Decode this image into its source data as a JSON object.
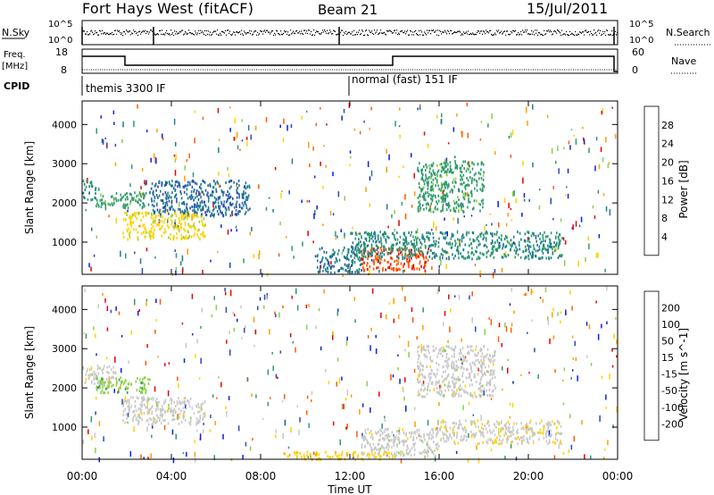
{
  "header": {
    "radar": "Fort Hays West (fitACF)",
    "beam": "Beam 21",
    "date": "15/Jul/2011"
  },
  "summary_panels": {
    "sky": {
      "left_label": "N.Sky",
      "ticks_left": [
        "10^5",
        "10^0"
      ],
      "right_label": "N.Search",
      "ticks_right": [
        "10^5",
        "10^0"
      ]
    },
    "freq": {
      "left_label_1": "Freq.",
      "left_label_2": "[MHz]",
      "ticks_left": [
        "18",
        "8"
      ],
      "right_label": "Nave",
      "ticks_right": [
        "60",
        "0"
      ]
    },
    "cpid": {
      "label": "CPID",
      "modes": [
        {
          "name": "themis 3300 IF",
          "start_ut": 0.0
        },
        {
          "name": "normal (fast) 151 IF",
          "start_ut": 12.0
        }
      ]
    }
  },
  "chart_data": [
    {
      "type": "heatmap",
      "title": "Power",
      "ylabel": "Slant Range [km]",
      "xlabel": "",
      "ylim": [
        180,
        4600
      ],
      "xlim": [
        0,
        24
      ],
      "yticks": [
        "1000",
        "2000",
        "3000",
        "4000"
      ],
      "colorbar": {
        "label": "Power [dB]",
        "ticks": [
          "4",
          "8",
          "12",
          "16",
          "20",
          "24",
          "28"
        ],
        "range": [
          0,
          30
        ],
        "colors": [
          "#0a1fe0",
          "#2a4ab8",
          "#1f7e8c",
          "#2f9a6a",
          "#8ccf48",
          "#ffd200",
          "#ff9c00",
          "#ff5a00",
          "#e60000"
        ]
      },
      "regions": [
        {
          "x": [
            0.0,
            0.6
          ],
          "y": [
            2100,
            2600
          ],
          "level": 10
        },
        {
          "x": [
            0.6,
            3.0
          ],
          "y": [
            1900,
            2300
          ],
          "level": 12
        },
        {
          "x": [
            1.8,
            5.5
          ],
          "y": [
            1100,
            1800
          ],
          "level": 18
        },
        {
          "x": [
            3.0,
            7.5
          ],
          "y": [
            1700,
            2600
          ],
          "level": 7
        },
        {
          "x": [
            10.5,
            12.5
          ],
          "y": [
            250,
            900
          ],
          "level": 8
        },
        {
          "x": [
            12.5,
            15.5
          ],
          "y": [
            300,
            900
          ],
          "level": 26
        },
        {
          "x": [
            12.0,
            21.5
          ],
          "y": [
            600,
            1300
          ],
          "level": 10
        },
        {
          "x": [
            15.0,
            18.0
          ],
          "y": [
            1800,
            3100
          ],
          "level": 12
        }
      ]
    },
    {
      "type": "heatmap",
      "title": "Velocity",
      "ylabel": "Slant Range [km]",
      "xlabel": "Time UT",
      "ylim": [
        180,
        4600
      ],
      "xlim": [
        0,
        24
      ],
      "yticks": [
        "1000",
        "2000",
        "3000",
        "4000"
      ],
      "xticks": [
        "00:00",
        "04:00",
        "08:00",
        "12:00",
        "16:00",
        "20:00",
        "00:00"
      ],
      "colorbar": {
        "label": "Velocity [m s^-1]",
        "ticks": [
          "200",
          "100",
          "50",
          "15",
          "-15",
          "-50",
          "-100",
          "-200"
        ],
        "range": [
          -250,
          250
        ],
        "colors": [
          "#e60000",
          "#ff5a00",
          "#ff9c00",
          "#ffd200",
          "#c8c8c8",
          "#8ccf48",
          "#2f9a6a",
          "#2a4ab8",
          "#0a1fe0"
        ]
      },
      "regions": [
        {
          "x": [
            0.0,
            1.5
          ],
          "y": [
            2100,
            2600
          ],
          "level": 0
        },
        {
          "x": [
            0.6,
            3.0
          ],
          "y": [
            1900,
            2300
          ],
          "level": 60
        },
        {
          "x": [
            1.8,
            5.5
          ],
          "y": [
            1100,
            1800
          ],
          "level": 0
        },
        {
          "x": [
            9.0,
            14.0
          ],
          "y": [
            200,
            400
          ],
          "level": -60
        },
        {
          "x": [
            12.5,
            16.0
          ],
          "y": [
            300,
            1000
          ],
          "level": 0
        },
        {
          "x": [
            16.0,
            21.5
          ],
          "y": [
            600,
            1200
          ],
          "level": -10
        },
        {
          "x": [
            15.0,
            18.5
          ],
          "y": [
            1800,
            3100
          ],
          "level": 0
        }
      ]
    }
  ]
}
